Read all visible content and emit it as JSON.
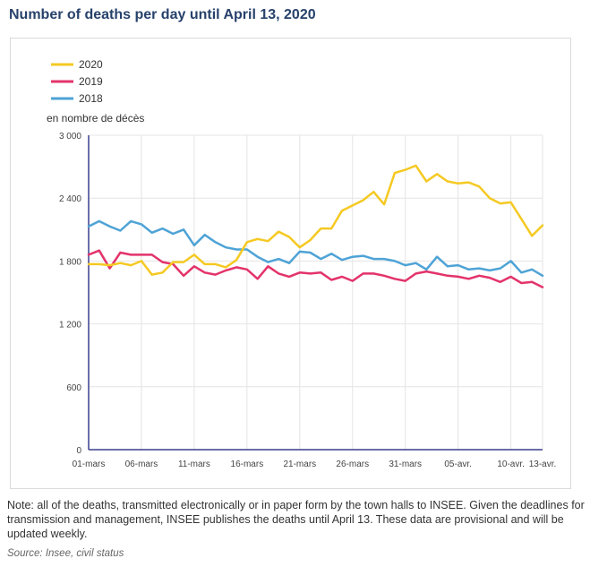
{
  "title": "Number of deaths per day until April 13, 2020",
  "note": "Note: all of the deaths, transmitted electronically or in paper form by the town halls to INSEE. Given the deadlines for transmission and management, INSEE publishes the deaths until April 13. These data are provisional and will be updated weekly.",
  "source": "Source: Insee, civil status",
  "chart_data": {
    "type": "line",
    "title": "Number of deaths per day until April 13, 2020",
    "ylabel": "en nombre de décès",
    "xlabel": "",
    "ylim": [
      0,
      3000
    ],
    "yticks": [
      0,
      600,
      1200,
      1800,
      2400,
      3000
    ],
    "ytick_labels": [
      "0",
      "600",
      "1 200",
      "1 800",
      "2 400",
      "3 000"
    ],
    "x_tick_labels": [
      "01-mars",
      "06-mars",
      "11-mars",
      "16-mars",
      "21-mars",
      "26-mars",
      "31-mars",
      "05-avr.",
      "10-avr.",
      "13-avr."
    ],
    "x_tick_index": [
      0,
      5,
      10,
      15,
      20,
      25,
      30,
      35,
      40,
      43
    ],
    "grid": true,
    "legend_position": "top-left",
    "x": [
      "01-mars",
      "02-mars",
      "03-mars",
      "04-mars",
      "05-mars",
      "06-mars",
      "07-mars",
      "08-mars",
      "09-mars",
      "10-mars",
      "11-mars",
      "12-mars",
      "13-mars",
      "14-mars",
      "15-mars",
      "16-mars",
      "17-mars",
      "18-mars",
      "19-mars",
      "20-mars",
      "21-mars",
      "22-mars",
      "23-mars",
      "24-mars",
      "25-mars",
      "26-mars",
      "27-mars",
      "28-mars",
      "29-mars",
      "30-mars",
      "31-mars",
      "01-avr.",
      "02-avr.",
      "03-avr.",
      "04-avr.",
      "05-avr.",
      "06-avr.",
      "07-avr.",
      "08-avr.",
      "09-avr.",
      "10-avr.",
      "11-avr.",
      "12-avr.",
      "13-avr."
    ],
    "series": [
      {
        "name": "2020",
        "color": "#f5c922",
        "values": [
          1770,
          1770,
          1760,
          1780,
          1760,
          1800,
          1670,
          1690,
          1790,
          1790,
          1860,
          1770,
          1770,
          1740,
          1810,
          1980,
          2010,
          1990,
          2080,
          2030,
          1930,
          2000,
          2110,
          2110,
          2280,
          2330,
          2380,
          2460,
          2340,
          2640,
          2670,
          2710,
          2560,
          2630,
          2560,
          2540,
          2550,
          2510,
          2400,
          2350,
          2360,
          2200,
          2040,
          2140
        ]
      },
      {
        "name": "2019",
        "color": "#e3336a",
        "values": [
          1860,
          1900,
          1730,
          1880,
          1860,
          1860,
          1860,
          1790,
          1770,
          1660,
          1750,
          1690,
          1670,
          1710,
          1740,
          1720,
          1630,
          1750,
          1680,
          1650,
          1690,
          1680,
          1690,
          1620,
          1650,
          1610,
          1680,
          1680,
          1660,
          1630,
          1610,
          1680,
          1700,
          1680,
          1660,
          1650,
          1630,
          1660,
          1640,
          1600,
          1650,
          1590,
          1600,
          1550
        ]
      },
      {
        "name": "2018",
        "color": "#4ea3d6",
        "values": [
          2130,
          2180,
          2130,
          2090,
          2180,
          2150,
          2070,
          2110,
          2060,
          2100,
          1950,
          2050,
          1980,
          1930,
          1910,
          1910,
          1840,
          1790,
          1820,
          1780,
          1890,
          1880,
          1820,
          1870,
          1810,
          1840,
          1850,
          1820,
          1820,
          1800,
          1760,
          1780,
          1720,
          1840,
          1750,
          1760,
          1720,
          1730,
          1710,
          1730,
          1800,
          1690,
          1720,
          1660
        ]
      }
    ]
  }
}
